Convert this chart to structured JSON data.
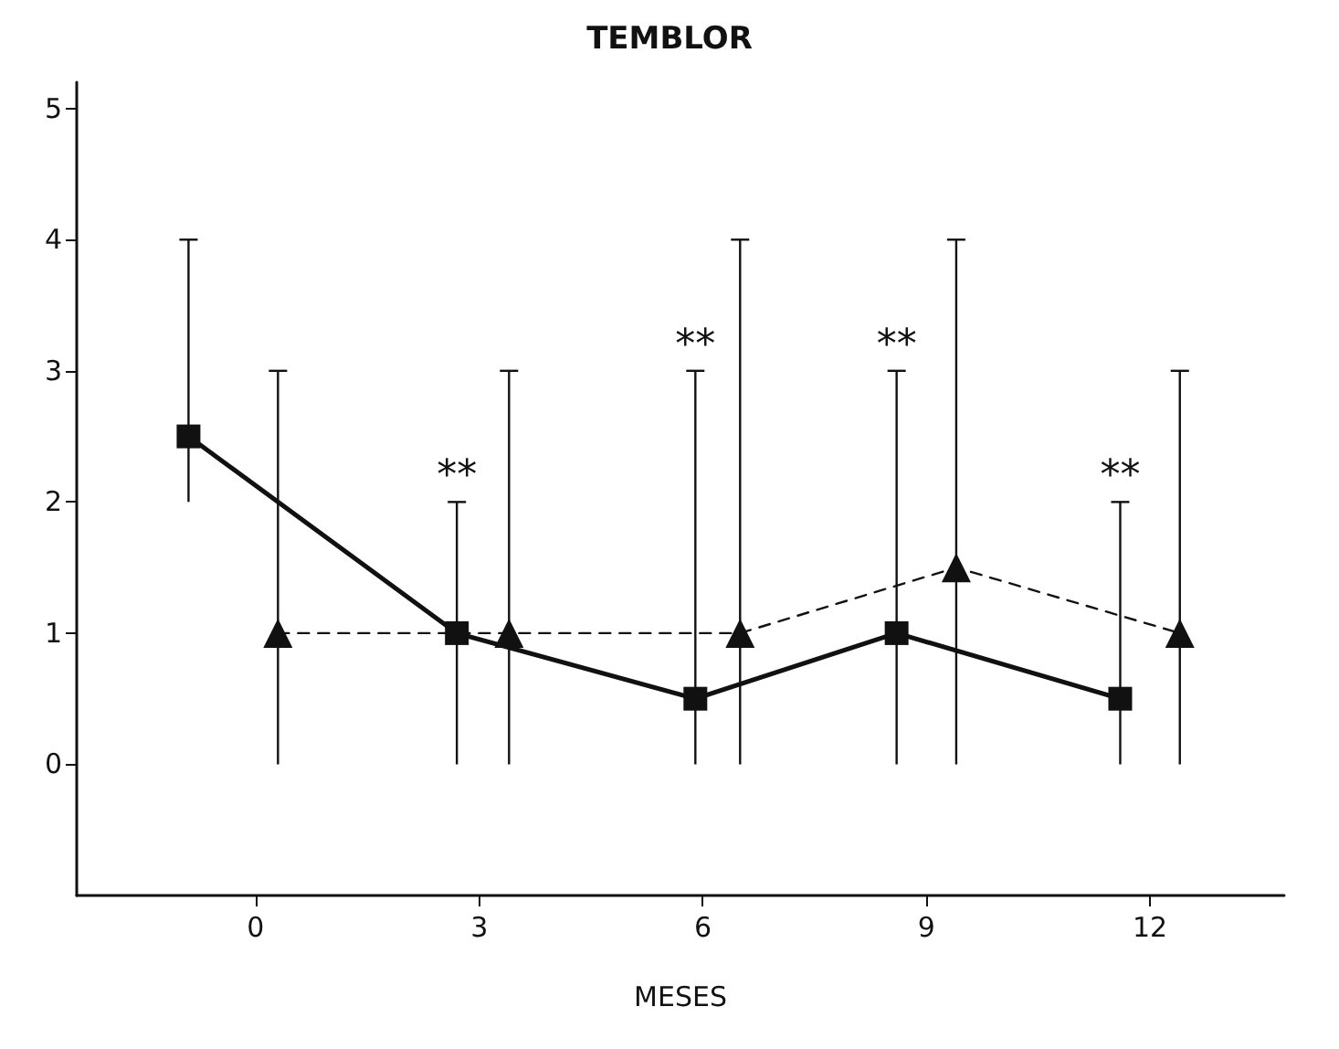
{
  "chart_data": {
    "type": "line",
    "title": "TEMBLOR",
    "xlabel": "MESES",
    "series": [
      {
        "color": "#111111",
        "marker": "square",
        "line_style": "solid",
        "x": [
          -0.9,
          2.7,
          5.9,
          8.6,
          11.6
        ],
        "values": [
          2.5,
          1,
          0.5,
          1,
          0.5
        ],
        "errors": [
          [
            2,
            4
          ],
          [
            0,
            2
          ],
          [
            0,
            3
          ],
          [
            0,
            3
          ],
          [
            0,
            2
          ]
        ]
      },
      {
        "color": "#111111",
        "marker": "triangle",
        "line_style": "dashed",
        "x": [
          0.3,
          3.4,
          6.5,
          9.4,
          12.4
        ],
        "values": [
          1,
          1,
          1,
          1.5,
          1
        ],
        "errors": [
          [
            0,
            3
          ],
          [
            0,
            3
          ],
          [
            0,
            4
          ],
          [
            0,
            4
          ],
          [
            0,
            3
          ]
        ]
      }
    ],
    "xlim": [
      -2.4,
      13.8
    ],
    "xticks": [
      0,
      3,
      6,
      9,
      12
    ],
    "ylim": [
      -1,
      5.2
    ],
    "yticks": [
      0,
      1,
      2,
      3,
      4,
      5
    ],
    "annotations": [
      "**",
      "**",
      "**",
      "**"
    ]
  }
}
